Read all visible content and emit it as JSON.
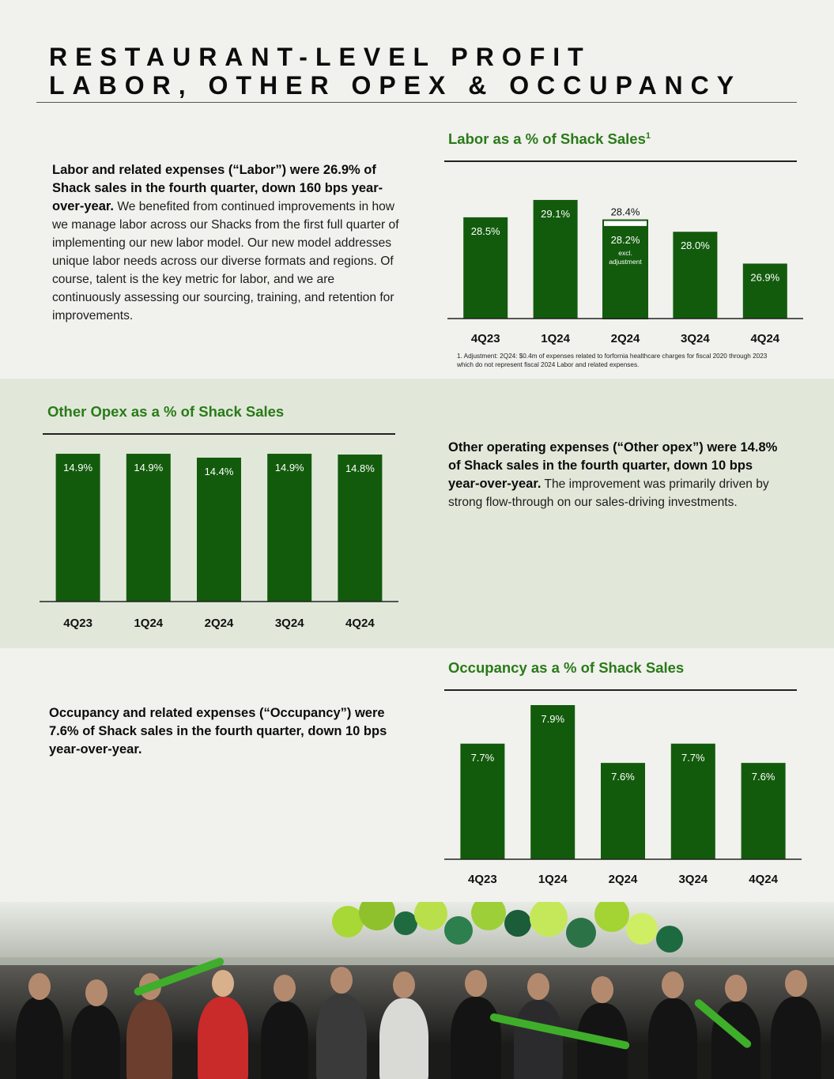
{
  "header": {
    "line1": "RESTAURANT-LEVEL PROFIT",
    "line2": "LABOR, OTHER OPEX & OCCUPANCY"
  },
  "labor": {
    "text_bold": "Labor and related expenses (“Labor”) were 26.9% of Shack sales in the fourth quarter, down 160 bps year-over-year.",
    "text_regular": " We benefited from continued improvements in how we manage labor across our Shacks from the first full quarter of implementing our new labor model. Our new model addresses unique labor needs across our diverse formats and regions. Of course, talent is the key metric for labor, and we are continuously assessing our sourcing, training, and retention for improvements.",
    "footnote": "1. Adjustment: 2Q24: $0.4m of expenses related to forfornia healthcare charges for fiscal 2020 through 2023 which do not represent fiscal 2024 Labor and related expenses."
  },
  "other_opex": {
    "text_bold": "Other operating expenses (“Other opex”) were 14.8% of Shack sales in the fourth quarter, down 10 bps year-over-year.",
    "text_regular": " The improvement was primarily driven by strong flow-through on our sales-driving investments."
  },
  "occupancy": {
    "text_bold": "Occupancy and related expenses (“Occupancy”) were 7.6% of Shack sales in the fourth quarter, down 10 bps year-over-year."
  },
  "colors": {
    "bar": "#125b0c",
    "chart_title": "#2a7a19",
    "band": "#e1e8da",
    "background": "#f1f1ed"
  },
  "chart_data": [
    {
      "type": "bar",
      "title": "Labor as a % of Shack Sales",
      "title_footnote_marker": "1",
      "categories": [
        "4Q23",
        "1Q24",
        "2Q24",
        "3Q24",
        "4Q24"
      ],
      "values": [
        28.5,
        29.1,
        28.4,
        28.0,
        26.9
      ],
      "value_labels": [
        "28.5%",
        "29.1%",
        "28.4%",
        "28.0%",
        "26.9%"
      ],
      "adjusted": {
        "category": "2Q24",
        "value": 28.2,
        "label": "28.2%",
        "note_line1": "excl.",
        "note_line2": "adjustment"
      },
      "xlabel": "",
      "ylabel": ""
    },
    {
      "type": "bar",
      "title": "Other Opex as a % of Shack Sales",
      "categories": [
        "4Q23",
        "1Q24",
        "2Q24",
        "3Q24",
        "4Q24"
      ],
      "values": [
        14.9,
        14.9,
        14.4,
        14.9,
        14.8
      ],
      "value_labels": [
        "14.9%",
        "14.9%",
        "14.4%",
        "14.9%",
        "14.8%"
      ],
      "xlabel": "",
      "ylabel": ""
    },
    {
      "type": "bar",
      "title": "Occupancy as a % of Shack Sales",
      "categories": [
        "4Q23",
        "1Q24",
        "2Q24",
        "3Q24",
        "4Q24"
      ],
      "values": [
        7.7,
        7.9,
        7.6,
        7.7,
        7.6
      ],
      "value_labels": [
        "7.7%",
        "7.9%",
        "7.6%",
        "7.7%",
        "7.6%"
      ],
      "xlabel": "",
      "ylabel": ""
    }
  ]
}
